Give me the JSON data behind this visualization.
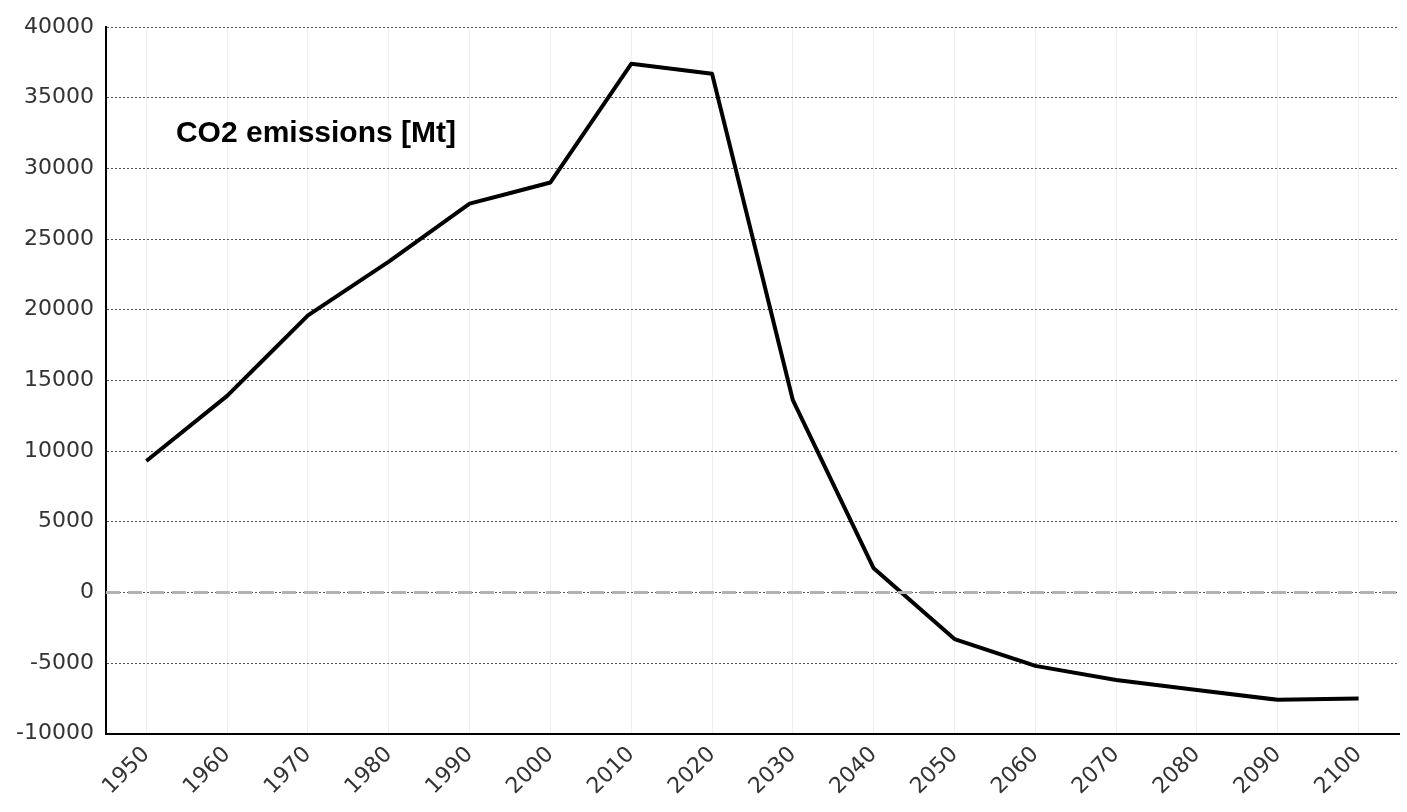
{
  "chart_data": {
    "type": "line",
    "title": "CO2 emissions [Mt]",
    "categories": [
      "1950",
      "1960",
      "1970",
      "1980",
      "1990",
      "2000",
      "2010",
      "2020",
      "2030",
      "2040",
      "2050",
      "2060",
      "2070",
      "2080",
      "2090",
      "2100"
    ],
    "series": [
      {
        "color": "#000000",
        "values": [
          9300,
          13900,
          19600,
          23400,
          27500,
          29000,
          37400,
          36700,
          13600,
          1700,
          -3300,
          -5200,
          -6200,
          -6900,
          -7600,
          -7500
        ]
      }
    ],
    "ylim": [
      -10000,
      40000
    ],
    "yticks": [
      -10000,
      -5000,
      0,
      5000,
      10000,
      15000,
      20000,
      25000,
      30000,
      35000,
      40000
    ],
    "grid": true,
    "legend": false,
    "marker": "none",
    "line_style": "solid",
    "ref_lines": [
      {
        "axis": "y",
        "value": 0,
        "color": "#b3b3b3",
        "line_style": "dashed"
      }
    ]
  }
}
